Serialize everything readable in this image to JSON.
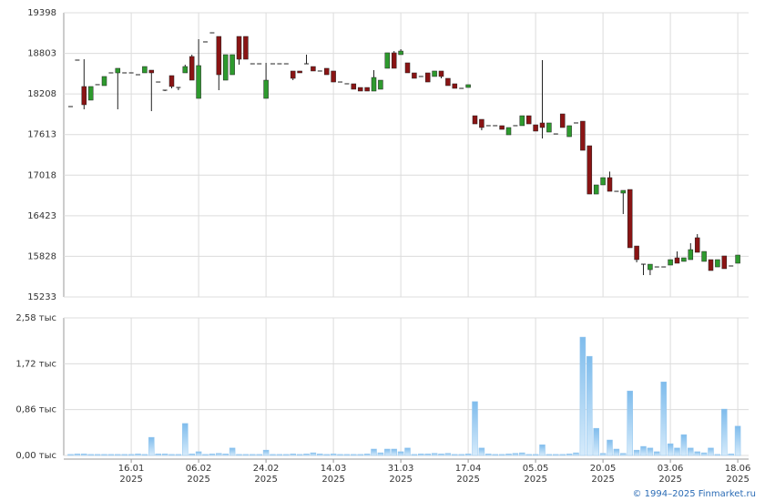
{
  "chart_data": [
    {
      "type": "candlestick",
      "up_color": "#2e9a2e",
      "down_color": "#8a1414",
      "ylim": [
        15233,
        19398
      ],
      "yticks": [
        15233,
        15828,
        16423,
        17018,
        17613,
        18208,
        18803,
        19398
      ],
      "grid": true,
      "series": {
        "open": [
          18023,
          18704,
          18317,
          18117,
          18344,
          18330,
          18517,
          18517,
          18517,
          18517,
          18490,
          18517,
          18557,
          18383,
          18263,
          18477,
          18303,
          18517,
          18757,
          18143,
          18971,
          19104,
          19051,
          18410,
          18490,
          19051,
          19051,
          18650,
          18650,
          18143,
          18650,
          18650,
          18650,
          18544,
          18544,
          18650,
          18610,
          18544,
          18584,
          18544,
          18383,
          18357,
          18357,
          18303,
          18303,
          18250,
          18277,
          18584,
          18811,
          18784,
          18664,
          18517,
          18464,
          18517,
          18464,
          18544,
          18437,
          18357,
          18290,
          18303,
          17889,
          17836,
          17743,
          17743,
          17743,
          17609,
          17743,
          17743,
          17889,
          17756,
          17783,
          17649,
          17622,
          17916,
          17582,
          17783,
          17809,
          17449,
          16741,
          16875,
          16982,
          16781,
          16755,
          16808,
          15980,
          15713,
          15633,
          15673,
          15673,
          15700,
          15807,
          15754,
          15780,
          16101,
          15754,
          15780,
          15673,
          15834,
          15687,
          15727
        ],
        "high": [
          18023,
          18704,
          18717,
          18317,
          18344,
          18464,
          18517,
          18584,
          18517,
          18517,
          18490,
          18610,
          18557,
          18383,
          18263,
          18477,
          18303,
          18637,
          18784,
          19011,
          18971,
          19104,
          19051,
          18784,
          18784,
          19051,
          19051,
          18650,
          18650,
          18664,
          18650,
          18650,
          18650,
          18544,
          18544,
          18784,
          18610,
          18544,
          18584,
          18544,
          18383,
          18357,
          18357,
          18303,
          18303,
          18557,
          18410,
          18811,
          18837,
          18864,
          18664,
          18517,
          18464,
          18517,
          18544,
          18544,
          18437,
          18357,
          18290,
          18344,
          17889,
          17836,
          17743,
          17743,
          17743,
          17716,
          17743,
          17889,
          17889,
          17756,
          18704,
          17783,
          17622,
          17916,
          17743,
          17783,
          17809,
          17449,
          16875,
          16982,
          17071,
          16781,
          16795,
          16808,
          15980,
          15713,
          15713,
          15673,
          15673,
          15780,
          15900,
          15807,
          16021,
          16154,
          15900,
          15780,
          15780,
          15834,
          15687,
          15847
        ],
        "low": [
          18023,
          18704,
          17983,
          18117,
          18344,
          18330,
          18517,
          17983,
          18517,
          18517,
          18490,
          18517,
          17956,
          18383,
          18250,
          18290,
          18263,
          18517,
          18410,
          18143,
          18971,
          19104,
          18263,
          18410,
          18490,
          18637,
          18717,
          18650,
          18650,
          18143,
          18650,
          18650,
          18650,
          18410,
          18517,
          18650,
          18544,
          18544,
          18490,
          18383,
          18383,
          18357,
          18277,
          18250,
          18250,
          18250,
          18277,
          18584,
          18584,
          18784,
          18517,
          18437,
          18464,
          18383,
          18464,
          18437,
          18330,
          18290,
          18290,
          18303,
          17769,
          17676,
          17743,
          17743,
          17689,
          17609,
          17743,
          17743,
          17769,
          17663,
          17556,
          17649,
          17622,
          17716,
          17582,
          17783,
          17382,
          16741,
          16741,
          16875,
          16781,
          16781,
          16448,
          15954,
          15740,
          15553,
          15553,
          15673,
          15673,
          15700,
          15727,
          15754,
          15780,
          15887,
          15754,
          15620,
          15673,
          15647,
          15687,
          15727
        ],
        "close": [
          18023,
          18704,
          18050,
          18317,
          18344,
          18464,
          18517,
          18584,
          18517,
          18517,
          18490,
          18610,
          18517,
          18383,
          18263,
          18317,
          18290,
          18610,
          18410,
          18624,
          18971,
          19104,
          18490,
          18784,
          18784,
          18717,
          18717,
          18650,
          18650,
          18410,
          18650,
          18650,
          18650,
          18437,
          18517,
          18650,
          18544,
          18544,
          18490,
          18383,
          18383,
          18357,
          18277,
          18250,
          18250,
          18450,
          18410,
          18811,
          18584,
          18837,
          18517,
          18437,
          18464,
          18383,
          18544,
          18464,
          18330,
          18290,
          18290,
          18344,
          17769,
          17716,
          17743,
          17743,
          17689,
          17716,
          17743,
          17889,
          17769,
          17663,
          17716,
          17783,
          17622,
          17716,
          17743,
          17783,
          17382,
          16741,
          16875,
          16982,
          16781,
          16781,
          16795,
          15954,
          15780,
          15713,
          15713,
          15673,
          15673,
          15780,
          15727,
          15807,
          15927,
          15887,
          15900,
          15620,
          15780,
          15647,
          15687,
          15847
        ]
      }
    },
    {
      "type": "bar",
      "color": "#93c6ef",
      "ylim": [
        0,
        2.58
      ],
      "yticks": [
        {
          "value": 0,
          "label": "0,00 тыс"
        },
        {
          "value": 0.86,
          "label": "0,86 тыс"
        },
        {
          "value": 1.72,
          "label": "1,72 тыс"
        },
        {
          "value": 2.58,
          "label": "2,58 тыс"
        }
      ],
      "grid": true,
      "categories": [
        null,
        null,
        null,
        null,
        null,
        null,
        null,
        null,
        null,
        [
          "16.01",
          "2025"
        ],
        null,
        null,
        null,
        null,
        null,
        null,
        null,
        null,
        null,
        [
          "06.02",
          "2025"
        ],
        null,
        null,
        null,
        null,
        null,
        null,
        null,
        null,
        null,
        [
          "24.02",
          "2025"
        ],
        null,
        null,
        null,
        null,
        null,
        null,
        null,
        null,
        null,
        [
          "14.03",
          "2025"
        ],
        null,
        null,
        null,
        null,
        null,
        null,
        null,
        null,
        null,
        [
          "31.03",
          "2025"
        ],
        null,
        null,
        null,
        null,
        null,
        null,
        null,
        null,
        null,
        [
          "17.04",
          "2025"
        ],
        null,
        null,
        null,
        null,
        null,
        null,
        null,
        null,
        null,
        [
          "05.05",
          "2025"
        ],
        null,
        null,
        null,
        null,
        null,
        null,
        null,
        null,
        null,
        [
          "20.05",
          "2025"
        ],
        null,
        null,
        null,
        null,
        null,
        null,
        null,
        null,
        null,
        [
          "03.06",
          "2025"
        ],
        null,
        null,
        null,
        null,
        null,
        null,
        null,
        null,
        null,
        [
          "18.06",
          "2025"
        ]
      ],
      "values": [
        0.02,
        0.03,
        0.03,
        0.02,
        0.02,
        0.02,
        0.02,
        0.02,
        0.02,
        0.02,
        0.03,
        0.02,
        0.34,
        0.03,
        0.03,
        0.02,
        0.02,
        0.6,
        0.03,
        0.07,
        0.02,
        0.03,
        0.04,
        0.03,
        0.14,
        0.02,
        0.02,
        0.02,
        0.02,
        0.1,
        0.02,
        0.02,
        0.02,
        0.03,
        0.02,
        0.03,
        0.05,
        0.03,
        0.02,
        0.03,
        0.02,
        0.02,
        0.02,
        0.02,
        0.03,
        0.12,
        0.05,
        0.12,
        0.12,
        0.07,
        0.14,
        0.02,
        0.03,
        0.03,
        0.04,
        0.03,
        0.04,
        0.02,
        0.02,
        0.03,
        1.01,
        0.14,
        0.03,
        0.02,
        0.02,
        0.03,
        0.04,
        0.05,
        0.02,
        0.02,
        0.2,
        0.02,
        0.02,
        0.02,
        0.03,
        0.05,
        2.22,
        1.86,
        0.51,
        0.04,
        0.29,
        0.12,
        0.04,
        1.21,
        0.1,
        0.17,
        0.14,
        0.07,
        1.38,
        0.22,
        0.14,
        0.39,
        0.14,
        0.07,
        0.05,
        0.14,
        0.02,
        0.87,
        0.03,
        0.55
      ]
    }
  ],
  "footer": "© 1994–2025 Finmarket.ru"
}
